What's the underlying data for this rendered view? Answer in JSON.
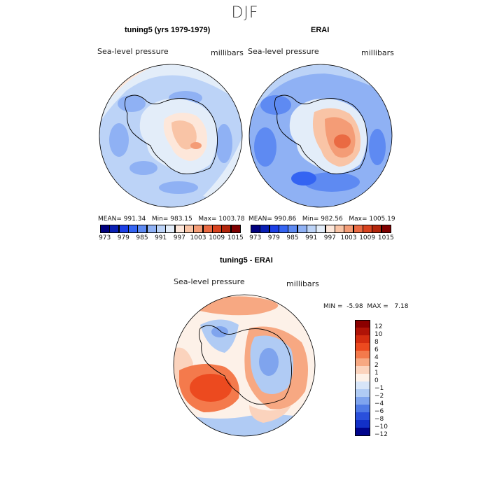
{
  "figure": {
    "season": "DJF",
    "top_left_title": "tuning5 (yrs 1979-1979)",
    "top_right_title": "ERAI",
    "bottom_title": "tuning5 - ERAI"
  },
  "chart_data": [
    {
      "type": "heatmap",
      "panel": "top-left",
      "projection": "south polar stereographic",
      "title": "tuning5 (yrs 1979-1979)",
      "field": "Sea-level pressure",
      "units": "millibars",
      "stats": {
        "mean_label": "MEAN=",
        "mean": "991.34",
        "min_label": "Min=",
        "min": "983.15",
        "max_label": "Max=",
        "max": "1003.78"
      },
      "levels": [
        973,
        976,
        979,
        982,
        985,
        988,
        991,
        994,
        997,
        1000,
        1003,
        1006,
        1009,
        1012,
        1015
      ],
      "tick_labels": [
        "973",
        "979",
        "985",
        "991",
        "997",
        "1003",
        "1009",
        "1015"
      ]
    },
    {
      "type": "heatmap",
      "panel": "top-right",
      "projection": "south polar stereographic",
      "title": "ERAI",
      "field": "Sea-level pressure",
      "units": "millibars",
      "stats": {
        "mean_label": "MEAN=",
        "mean": "990.86",
        "min_label": "Min=",
        "min": "982.56",
        "max_label": "Max=",
        "max": "1005.19"
      },
      "levels": [
        973,
        976,
        979,
        982,
        985,
        988,
        991,
        994,
        997,
        1000,
        1003,
        1006,
        1009,
        1012,
        1015
      ],
      "tick_labels": [
        "973",
        "979",
        "985",
        "991",
        "997",
        "1003",
        "1009",
        "1015"
      ]
    },
    {
      "type": "heatmap",
      "panel": "bottom",
      "projection": "south polar stereographic",
      "title": "tuning5 - ERAI",
      "field": "Sea-level pressure",
      "units": "millibars",
      "stats": {
        "min_label": "MIN =",
        "min": "-5.98",
        "max_label": "MAX =",
        "max": "7.18"
      },
      "levels": [
        12,
        10,
        8,
        6,
        4,
        2,
        1,
        0,
        -1,
        -2,
        -4,
        -6,
        -8,
        -10,
        -12
      ],
      "tick_labels": [
        "12",
        "10",
        "8",
        "6",
        "4",
        "2",
        "1",
        "0",
        "−1",
        "−2",
        "−4",
        "−6",
        "−8",
        "−10",
        "−12"
      ]
    }
  ],
  "colors": {
    "absolute_scale": [
      "#00007f",
      "#0a1fb4",
      "#1c3fe6",
      "#3464f2",
      "#5e8af2",
      "#8fb1f4",
      "#bcd3f7",
      "#e3edf9",
      "#fde7da",
      "#f9c4a6",
      "#f49c76",
      "#ea6a43",
      "#d9431f",
      "#b3260c",
      "#7f0000"
    ],
    "difference_scale": [
      "#8b0000",
      "#b01307",
      "#d42d10",
      "#ec4a1f",
      "#f47a4c",
      "#f7a882",
      "#fbd3bd",
      "#fdf1e8",
      "#d7e5f8",
      "#b0cbf4",
      "#7fa4ee",
      "#4f7ae6",
      "#2a50dc",
      "#1230c8",
      "#00048c"
    ],
    "land_outline": "#000000"
  }
}
